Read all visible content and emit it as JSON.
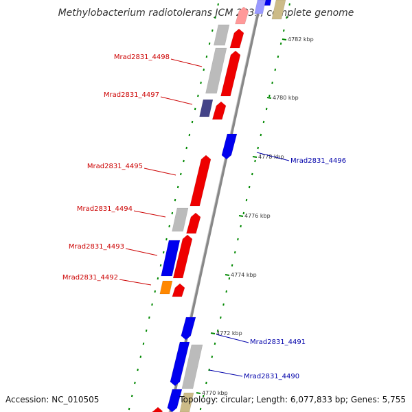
{
  "title": "Methylobacterium radiotolerans JCM 2831, complete genome",
  "footer": {
    "accession": "Accession: NC_010505",
    "summary": "Topology: circular; Length: 6,077,833 bp; Genes: 5,755"
  },
  "colors": {
    "forward_label": "#cc0000",
    "reverse_label": "#0000aa",
    "backbone": "#888888",
    "tick": "#008800",
    "forward_cds": "#ee0000",
    "reverse_cds": "#0000ee",
    "gray_cds": "#bbbbbb",
    "purple_cds": "#444488",
    "orange_cds": "#ff8800",
    "pink_cds": "#ff9999",
    "lightblue_cds": "#9999ff",
    "khaki_cds": "#ccbb88"
  },
  "kbp_ticks": [
    {
      "label": "4782 kbp"
    },
    {
      "label": "4780 kbp"
    },
    {
      "label": "4778 kbp"
    },
    {
      "label": "4776 kbp"
    },
    {
      "label": "4774 kbp"
    },
    {
      "label": "4772 kbp"
    },
    {
      "label": "4770 kbp"
    }
  ],
  "gene_labels": [
    {
      "text": "Mrad2831_4498",
      "strand": "forward"
    },
    {
      "text": "Mrad2831_4497",
      "strand": "forward"
    },
    {
      "text": "Mrad2831_4495",
      "strand": "forward"
    },
    {
      "text": "Mrad2831_4494",
      "strand": "forward"
    },
    {
      "text": "Mrad2831_4493",
      "strand": "forward"
    },
    {
      "text": "Mrad2831_4492",
      "strand": "forward"
    },
    {
      "text": "Mrad2831_4496",
      "strand": "reverse"
    },
    {
      "text": "Mrad2831_4491",
      "strand": "reverse"
    },
    {
      "text": "Mrad2831_4490",
      "strand": "reverse"
    }
  ]
}
